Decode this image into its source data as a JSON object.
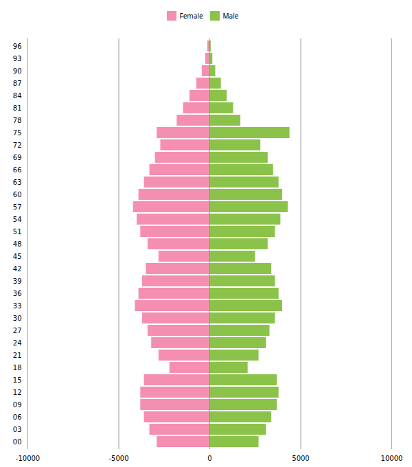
{
  "chart_data": {
    "type": "bar",
    "orientation": "horizontal",
    "categories": [
      "00",
      "03",
      "06",
      "09",
      "12",
      "15",
      "18",
      "21",
      "24",
      "27",
      "30",
      "33",
      "36",
      "39",
      "42",
      "45",
      "48",
      "51",
      "54",
      "57",
      "60",
      "63",
      "66",
      "69",
      "72",
      "75",
      "78",
      "81",
      "84",
      "87",
      "90",
      "93",
      "96"
    ],
    "series": [
      {
        "name": "Female",
        "color": "#f48fb1",
        "values": [
          -2900,
          -3300,
          -3600,
          -3800,
          -3800,
          -3600,
          -2200,
          -2800,
          -3200,
          -3400,
          -3700,
          -4100,
          -3900,
          -3700,
          -3500,
          -2800,
          -3400,
          -3800,
          -4000,
          -4200,
          -3900,
          -3600,
          -3300,
          -3000,
          -2700,
          -2900,
          -1800,
          -1450,
          -1100,
          -720,
          -420,
          -230,
          -120
        ]
      },
      {
        "name": "Male",
        "color": "#8bc34a",
        "values": [
          2700,
          3100,
          3400,
          3700,
          3800,
          3700,
          2100,
          2700,
          3100,
          3300,
          3600,
          4000,
          3800,
          3600,
          3400,
          2500,
          3200,
          3600,
          3900,
          4300,
          4000,
          3800,
          3500,
          3200,
          2800,
          4400,
          1700,
          1300,
          950,
          630,
          320,
          160,
          70
        ]
      }
    ],
    "xlim": [
      -10000,
      10000
    ],
    "xticks": [
      -10000,
      -5000,
      0,
      5000,
      10000
    ],
    "grid": true,
    "legend": "top"
  }
}
